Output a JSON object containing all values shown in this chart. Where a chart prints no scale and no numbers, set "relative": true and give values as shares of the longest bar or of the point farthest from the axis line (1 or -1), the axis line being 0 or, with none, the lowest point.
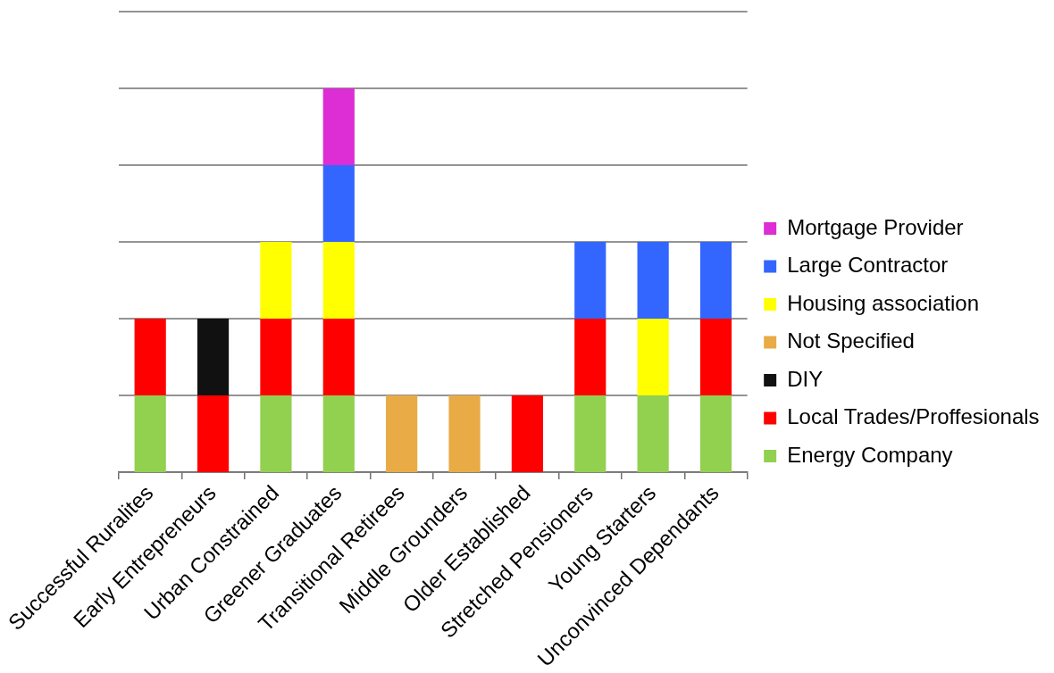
{
  "chart_data": {
    "type": "bar",
    "stacked": true,
    "relative": true,
    "grid": "y",
    "legend": "right",
    "categories": [
      "Successful Ruralites",
      "Early Entrepreneurs",
      "Urban Constrained",
      "Greener Graduates",
      "Transitional Retirees",
      "Middle Grounders",
      "Older Established",
      "Stretched Pensioners",
      "Young Starters",
      "Unconvinced Dependants"
    ],
    "series": [
      {
        "name": "Energy Company",
        "color": "#92d050",
        "values": [
          0.2,
          null,
          0.2,
          0.2,
          null,
          null,
          null,
          0.2,
          0.2,
          0.2
        ]
      },
      {
        "name": "Local Trades/Proffesionals",
        "color": "#ff0000",
        "values": [
          0.2,
          0.2,
          0.2,
          0.2,
          null,
          null,
          0.2,
          0.2,
          null,
          0.2
        ]
      },
      {
        "name": "DIY",
        "color": "#111111",
        "values": [
          null,
          0.2,
          null,
          null,
          null,
          null,
          null,
          null,
          null,
          null
        ]
      },
      {
        "name": "Not Specified",
        "color": "#e8ab45",
        "values": [
          null,
          null,
          null,
          null,
          0.2,
          0.2,
          null,
          null,
          null,
          null
        ]
      },
      {
        "name": "Housing association",
        "color": "#ffff00",
        "values": [
          null,
          null,
          0.2,
          0.2,
          null,
          null,
          null,
          null,
          0.2,
          null
        ]
      },
      {
        "name": "Large Contractor",
        "color": "#3366ff",
        "values": [
          null,
          null,
          null,
          0.2,
          null,
          null,
          null,
          0.2,
          0.2,
          0.2
        ]
      },
      {
        "name": "Mortgage Provider",
        "color": "#dd2dd4",
        "values": [
          null,
          null,
          null,
          0.2,
          null,
          null,
          null,
          null,
          null,
          null
        ]
      }
    ]
  }
}
